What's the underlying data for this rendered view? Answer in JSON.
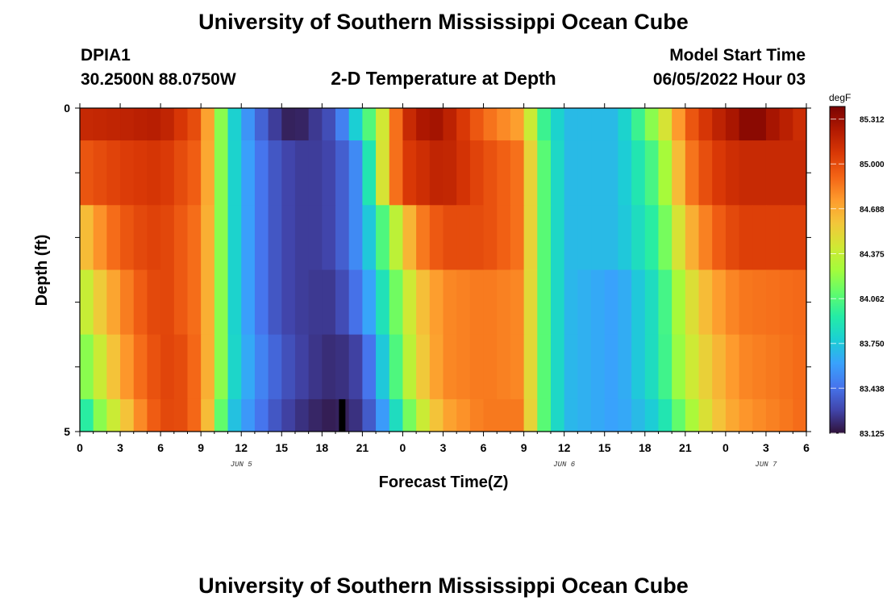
{
  "header": {
    "title": "University of Southern Mississippi Ocean Cube",
    "station_id": "DPIA1",
    "station_coords": "30.2500N  88.0750W",
    "model_start_label": "Model Start Time",
    "model_start_value": "06/05/2022 Hour 03",
    "footer_title": "University of Southern Mississippi Ocean Cube"
  },
  "colorbar": {
    "unit": "degF",
    "ticks": [
      "85.312",
      "85.000",
      "84.688",
      "84.375",
      "84.062",
      "83.750",
      "83.438",
      "83.125"
    ],
    "colors": [
      "#30123b",
      "#4145ab",
      "#4675ed",
      "#39a2fc",
      "#1bcfd4",
      "#24eca6",
      "#61fc6c",
      "#a4fc3b",
      "#d1e834",
      "#f3c63a",
      "#fe9b2d",
      "#f36315",
      "#d93806",
      "#b11901",
      "#7a0402"
    ]
  },
  "chart_data": {
    "type": "heatmap",
    "title": "2-D Temperature at Depth",
    "xlabel": "Forecast Time(Z)",
    "ylabel": "Depth (ft)",
    "unit": "degF",
    "x_range": [
      0,
      54
    ],
    "x_step_hours": 1,
    "x_tick_labels": [
      "0",
      "3",
      "6",
      "9",
      "12",
      "15",
      "18",
      "21",
      "0",
      "3",
      "6",
      "9",
      "12",
      "15",
      "18",
      "21",
      "0",
      "3",
      "6"
    ],
    "x_date_labels": [
      {
        "hour": 12,
        "label": "JUN 5"
      },
      {
        "hour": 36,
        "label": "JUN 6"
      },
      {
        "hour": 51,
        "label": "JUN 7"
      }
    ],
    "y_range": [
      0,
      5
    ],
    "y_tick_labels": [
      "0",
      "5"
    ],
    "depth_bins": [
      [
        0,
        0.5
      ],
      [
        0.5,
        1.5
      ],
      [
        1.5,
        2.5
      ],
      [
        2.5,
        3.5
      ],
      [
        3.5,
        4.5
      ],
      [
        4.5,
        5
      ]
    ],
    "value_range": [
      83.125,
      85.4
    ],
    "colorbar_ticks": [
      85.312,
      85.0,
      84.688,
      84.375,
      84.062,
      83.75,
      83.438,
      83.125
    ],
    "missing_cell": {
      "hour": 19.5,
      "depth_bin": 5
    },
    "keyframes": [
      {
        "hours": [
          0,
          3,
          6,
          9,
          10,
          11,
          13,
          15,
          16,
          19,
          22,
          24,
          26,
          27,
          30,
          33,
          34,
          36,
          40,
          43,
          45,
          47,
          49,
          50,
          51,
          54
        ],
        "values": [
          85.15,
          85.18,
          85.22,
          84.95,
          84.5,
          83.9,
          83.45,
          83.2,
          83.15,
          83.35,
          84.2,
          85.1,
          85.3,
          85.25,
          84.9,
          84.7,
          84.1,
          83.7,
          83.7,
          84.3,
          84.9,
          85.15,
          85.3,
          85.4,
          85.3,
          85.1
        ]
      },
      {
        "hours": [
          0,
          3,
          6,
          9,
          10,
          11,
          13,
          15,
          17,
          19,
          21,
          22,
          23,
          24,
          27,
          30,
          33,
          34,
          36,
          40,
          43,
          45,
          47,
          49,
          54
        ],
        "values": [
          84.95,
          85.05,
          85.1,
          84.9,
          84.5,
          83.9,
          83.5,
          83.3,
          83.25,
          83.3,
          83.6,
          84.2,
          84.7,
          85.05,
          85.2,
          85.0,
          84.85,
          84.2,
          83.7,
          83.7,
          84.1,
          84.8,
          85.05,
          85.15,
          85.15
        ]
      },
      {
        "hours": [
          0,
          2,
          4,
          6,
          9,
          10,
          11,
          13,
          15,
          17,
          19,
          21,
          23,
          25,
          27,
          30,
          33,
          34,
          36,
          40,
          43,
          45,
          47,
          49,
          54
        ],
        "values": [
          84.55,
          84.85,
          85.0,
          85.05,
          84.85,
          84.5,
          83.9,
          83.5,
          83.3,
          83.25,
          83.3,
          83.6,
          84.2,
          84.8,
          85.0,
          85.0,
          84.85,
          84.2,
          83.7,
          83.7,
          84.0,
          84.6,
          84.9,
          85.05,
          85.05
        ]
      },
      {
        "hours": [
          0,
          2,
          4,
          6,
          9,
          10,
          11,
          13,
          15,
          17,
          19,
          21,
          23,
          25,
          27,
          30,
          33,
          34,
          36,
          40,
          43,
          45,
          47,
          49,
          54
        ],
        "values": [
          84.3,
          84.65,
          84.9,
          85.05,
          84.85,
          84.5,
          83.9,
          83.5,
          83.3,
          83.25,
          83.25,
          83.5,
          84.0,
          84.55,
          84.8,
          84.85,
          84.8,
          84.2,
          83.7,
          83.6,
          83.9,
          84.4,
          84.7,
          84.85,
          84.9
        ]
      },
      {
        "hours": [
          0,
          1,
          3,
          5,
          7,
          9,
          10,
          11,
          13,
          15,
          17,
          19,
          21,
          23,
          25,
          27,
          30,
          33,
          34,
          36,
          40,
          43,
          45,
          47,
          49,
          54
        ],
        "values": [
          84.1,
          84.3,
          84.7,
          84.95,
          85.05,
          84.85,
          84.5,
          83.9,
          83.55,
          83.35,
          83.25,
          83.2,
          83.3,
          83.9,
          84.5,
          84.8,
          84.85,
          84.8,
          84.2,
          83.7,
          83.6,
          83.9,
          84.35,
          84.6,
          84.8,
          84.9
        ]
      },
      {
        "hours": [
          0,
          1,
          3,
          5,
          7,
          9,
          10,
          11,
          13,
          15,
          17,
          19,
          21,
          23,
          25,
          27,
          30,
          33,
          34,
          36,
          40,
          43,
          45,
          47,
          49,
          54
        ],
        "values": [
          83.8,
          84.1,
          84.5,
          84.9,
          85.05,
          84.85,
          84.4,
          83.8,
          83.5,
          83.3,
          83.2,
          83.15,
          83.25,
          83.7,
          84.3,
          84.7,
          84.85,
          84.85,
          84.2,
          83.7,
          83.6,
          83.8,
          84.2,
          84.55,
          84.75,
          84.9
        ]
      }
    ]
  }
}
